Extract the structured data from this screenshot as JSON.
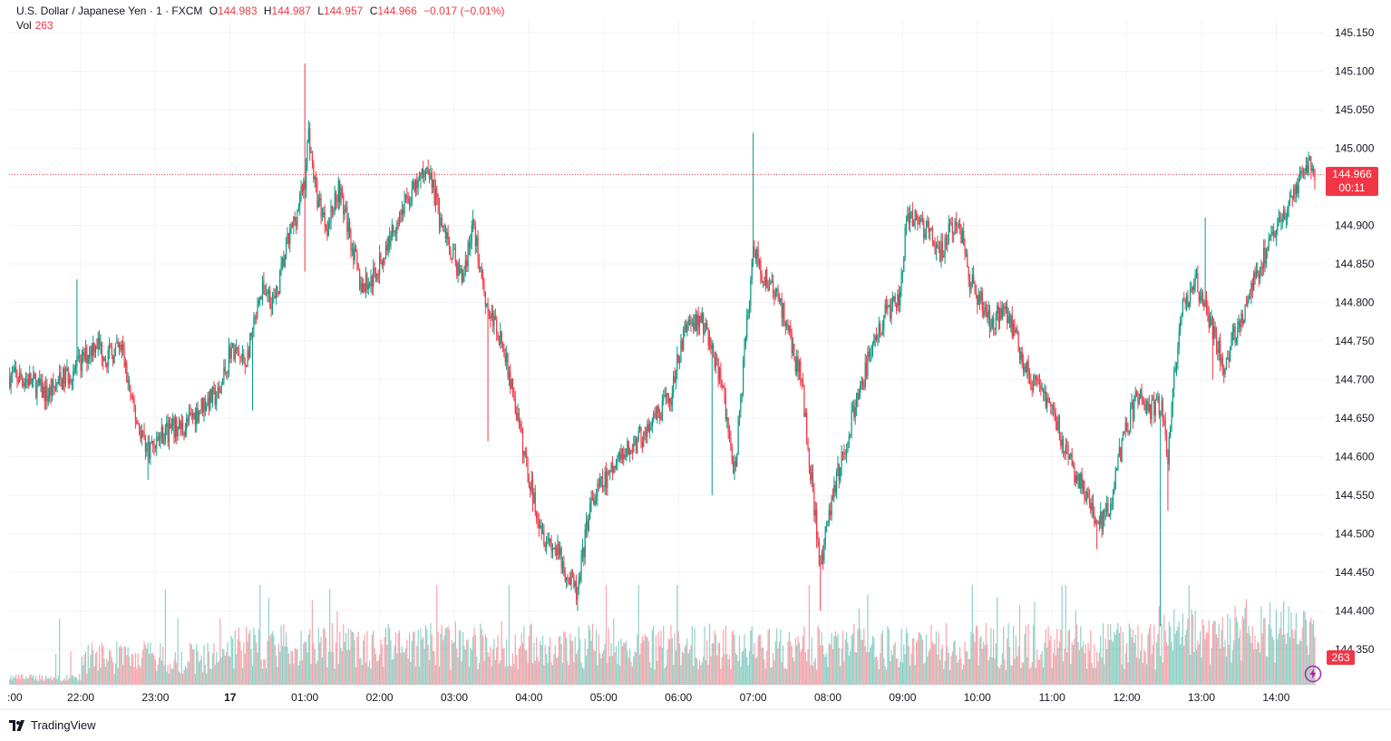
{
  "legend": {
    "symbol": "U.S. Dollar / Japanese Yen · 1 · FXCM",
    "open_label": "O",
    "open": "144.983",
    "high_label": "H",
    "high": "144.987",
    "low_label": "L",
    "low": "144.957",
    "close_label": "C",
    "close": "144.966",
    "change": "−0.017 (−0.01%)",
    "vol_label": "Vol",
    "vol_value": "263"
  },
  "price_tag": {
    "price": "144.966",
    "countdown": "00:11"
  },
  "volume_tag": "263",
  "brand": "TradingView",
  "colors": {
    "up": "#089981",
    "down": "#f23645",
    "grid": "#f0f3fa",
    "text": "#131722"
  },
  "chart_data": {
    "type": "candlestick",
    "title": "U.S. Dollar / Japanese Yen · 1 · FXCM",
    "ylim": [
      144.35,
      145.17
    ],
    "yticks": [
      "145.150",
      "145.100",
      "145.050",
      "145.000",
      "144.950",
      "144.900",
      "144.850",
      "144.800",
      "144.750",
      "144.700",
      "144.650",
      "144.600",
      "144.550",
      "144.500",
      "144.450",
      "144.400",
      "144.350"
    ],
    "xticks": [
      ":00",
      "22:00",
      "23:00",
      "17",
      "01:00",
      "02:00",
      "03:00",
      "04:00",
      "05:00",
      "06:00",
      "07:00",
      "08:00",
      "09:00",
      "10:00",
      "11:00",
      "12:00",
      "13:00",
      "14:00"
    ],
    "x_start_hours": -2.95,
    "x_end_hours": 14.53,
    "current_price": 144.966,
    "price_path": [
      [
        -2.95,
        144.705
      ],
      [
        -2.7,
        144.7
      ],
      [
        -2.45,
        144.68
      ],
      [
        -2.25,
        144.7
      ],
      [
        -2.0,
        144.72
      ],
      [
        -1.8,
        144.75
      ],
      [
        -1.65,
        144.73
      ],
      [
        -1.45,
        144.74
      ],
      [
        -1.3,
        144.66
      ],
      [
        -1.1,
        144.61
      ],
      [
        -0.9,
        144.63
      ],
      [
        -0.6,
        144.64
      ],
      [
        -0.35,
        144.67
      ],
      [
        -0.15,
        144.68
      ],
      [
        0.0,
        144.74
      ],
      [
        0.2,
        144.72
      ],
      [
        0.3,
        144.76
      ],
      [
        0.45,
        144.82
      ],
      [
        0.6,
        144.8
      ],
      [
        0.75,
        144.87
      ],
      [
        0.9,
        144.92
      ],
      [
        1.0,
        144.96
      ],
      [
        1.05,
        145.02
      ],
      [
        1.15,
        144.94
      ],
      [
        1.3,
        144.9
      ],
      [
        1.45,
        144.95
      ],
      [
        1.6,
        144.89
      ],
      [
        1.75,
        144.82
      ],
      [
        1.9,
        144.83
      ],
      [
        2.05,
        144.86
      ],
      [
        2.2,
        144.9
      ],
      [
        2.35,
        144.93
      ],
      [
        2.5,
        144.95
      ],
      [
        2.65,
        144.98
      ],
      [
        2.8,
        144.91
      ],
      [
        2.95,
        144.87
      ],
      [
        3.1,
        144.83
      ],
      [
        3.25,
        144.9
      ],
      [
        3.45,
        144.79
      ],
      [
        3.6,
        144.76
      ],
      [
        3.75,
        144.7
      ],
      [
        3.9,
        144.62
      ],
      [
        4.05,
        144.55
      ],
      [
        4.2,
        144.5
      ],
      [
        4.35,
        144.48
      ],
      [
        4.5,
        144.45
      ],
      [
        4.65,
        144.42
      ],
      [
        4.8,
        144.53
      ],
      [
        4.95,
        144.56
      ],
      [
        5.1,
        144.58
      ],
      [
        5.25,
        144.6
      ],
      [
        5.45,
        144.62
      ],
      [
        5.65,
        144.64
      ],
      [
        5.9,
        144.68
      ],
      [
        6.1,
        144.77
      ],
      [
        6.3,
        144.78
      ],
      [
        6.45,
        144.74
      ],
      [
        6.6,
        144.68
      ],
      [
        6.75,
        144.58
      ],
      [
        6.9,
        144.75
      ],
      [
        7.0,
        144.87
      ],
      [
        7.1,
        144.84
      ],
      [
        7.25,
        144.82
      ],
      [
        7.4,
        144.79
      ],
      [
        7.55,
        144.73
      ],
      [
        7.65,
        144.7
      ],
      [
        7.8,
        144.55
      ],
      [
        7.9,
        144.45
      ],
      [
        8.05,
        144.55
      ],
      [
        8.2,
        144.6
      ],
      [
        8.35,
        144.66
      ],
      [
        8.5,
        144.71
      ],
      [
        8.65,
        144.76
      ],
      [
        8.8,
        144.79
      ],
      [
        8.95,
        144.8
      ],
      [
        9.05,
        144.9
      ],
      [
        9.2,
        144.91
      ],
      [
        9.35,
        144.89
      ],
      [
        9.5,
        144.86
      ],
      [
        9.65,
        144.9
      ],
      [
        9.8,
        144.89
      ],
      [
        9.9,
        144.83
      ],
      [
        10.05,
        144.8
      ],
      [
        10.2,
        144.77
      ],
      [
        10.35,
        144.8
      ],
      [
        10.5,
        144.76
      ],
      [
        10.7,
        144.7
      ],
      [
        10.9,
        144.68
      ],
      [
        11.05,
        144.65
      ],
      [
        11.2,
        144.6
      ],
      [
        11.35,
        144.57
      ],
      [
        11.5,
        144.54
      ],
      [
        11.6,
        144.51
      ],
      [
        11.75,
        144.53
      ],
      [
        11.9,
        144.6
      ],
      [
        12.0,
        144.64
      ],
      [
        12.15,
        144.68
      ],
      [
        12.3,
        144.66
      ],
      [
        12.45,
        144.67
      ],
      [
        12.55,
        144.6
      ],
      [
        12.65,
        144.72
      ],
      [
        12.75,
        144.79
      ],
      [
        12.9,
        144.83
      ],
      [
        13.05,
        144.8
      ],
      [
        13.15,
        144.76
      ],
      [
        13.3,
        144.72
      ],
      [
        13.45,
        144.76
      ],
      [
        13.6,
        144.8
      ],
      [
        13.75,
        144.84
      ],
      [
        13.9,
        144.87
      ],
      [
        14.05,
        144.9
      ],
      [
        14.2,
        144.93
      ],
      [
        14.35,
        144.96
      ],
      [
        14.45,
        144.985
      ],
      [
        14.53,
        144.966
      ]
    ],
    "spikes": [
      [
        1.0,
        145.11
      ],
      [
        1.0,
        144.84
      ],
      [
        6.45,
        144.55
      ],
      [
        7.0,
        145.02
      ],
      [
        7.9,
        144.4
      ],
      [
        12.45,
        144.38
      ],
      [
        12.55,
        144.53
      ],
      [
        13.05,
        144.91
      ],
      [
        13.15,
        144.7
      ],
      [
        4.65,
        144.4
      ],
      [
        11.6,
        144.48
      ],
      [
        -1.1,
        144.57
      ],
      [
        0.3,
        144.66
      ],
      [
        3.25,
        144.92
      ],
      [
        3.45,
        144.62
      ],
      [
        -2.05,
        144.83
      ]
    ],
    "volume_scale_max": 450
  }
}
